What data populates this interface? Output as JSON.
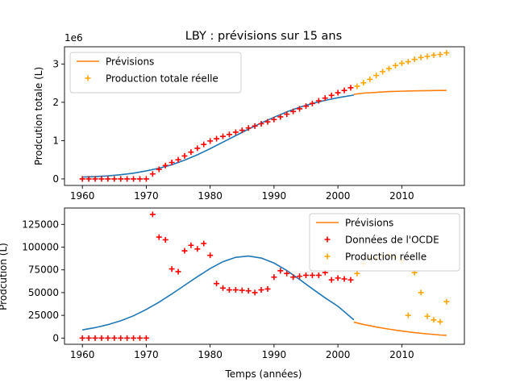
{
  "title": "LBY : prévisions sur 15 ans",
  "colors": {
    "fit": "#1f77b4",
    "forecast": "#ff7f0e",
    "oecd": "#ff0000",
    "real": "#ffa500"
  },
  "chart_data": [
    {
      "type": "line",
      "title": "LBY : prévisions sur 15 ans",
      "xlabel": "",
      "ylabel": "Prodcution totale (L)",
      "offset_text": "1e6",
      "xlim": [
        1957.2,
        2019.8
      ],
      "ylim": [
        -0.17,
        3.45
      ],
      "xticks": [
        1960,
        1970,
        1980,
        1990,
        2000,
        2010
      ],
      "yticks": [
        0,
        1,
        2,
        3
      ],
      "legend": {
        "placement": "upper-left",
        "entries": [
          "Prévisions",
          "Production totale réelle"
        ]
      },
      "series": [
        {
          "name": "",
          "color": "#1f77b4",
          "style": "line",
          "x": [
            1960,
            1962,
            1964,
            1966,
            1968,
            1970,
            1972,
            1974,
            1976,
            1978,
            1980,
            1982,
            1984,
            1986,
            1988,
            1990,
            1992,
            1994,
            1996,
            1998,
            2000,
            2002.5
          ],
          "y": [
            0.05,
            0.06,
            0.08,
            0.11,
            0.15,
            0.21,
            0.28,
            0.37,
            0.49,
            0.63,
            0.79,
            0.96,
            1.13,
            1.3,
            1.46,
            1.61,
            1.75,
            1.87,
            1.97,
            2.05,
            2.12,
            2.19
          ]
        },
        {
          "name": "Prévisions",
          "color": "#ff7f0e",
          "style": "line",
          "x": [
            2002.5,
            2004,
            2006,
            2008,
            2010,
            2012,
            2014,
            2016,
            2017
          ],
          "y": [
            2.21,
            2.24,
            2.26,
            2.28,
            2.29,
            2.3,
            2.305,
            2.31,
            2.31
          ]
        },
        {
          "name": "",
          "color": "#ff0000",
          "style": "marker",
          "x": [
            1960,
            1961,
            1962,
            1963,
            1964,
            1965,
            1966,
            1967,
            1968,
            1969,
            1970,
            1971,
            1972,
            1973,
            1974,
            1975,
            1976,
            1977,
            1978,
            1979,
            1980,
            1981,
            1982,
            1983,
            1984,
            1985,
            1986,
            1987,
            1988,
            1989,
            1990,
            1991,
            1992,
            1993,
            1994,
            1995,
            1996,
            1997,
            1998,
            1999,
            2000,
            2001,
            2002
          ],
          "y": [
            0,
            0,
            0,
            0,
            0,
            0,
            0,
            0,
            0,
            0,
            0,
            0.13,
            0.25,
            0.35,
            0.43,
            0.5,
            0.6,
            0.7,
            0.8,
            0.9,
            0.99,
            1.05,
            1.11,
            1.16,
            1.22,
            1.27,
            1.33,
            1.38,
            1.44,
            1.49,
            1.55,
            1.62,
            1.69,
            1.76,
            1.83,
            1.9,
            1.97,
            2.04,
            2.11,
            2.18,
            2.25,
            2.31,
            2.38
          ]
        },
        {
          "name": "Production totale réelle",
          "color": "#ffa500",
          "style": "marker",
          "x": [
            2003,
            2004,
            2005,
            2006,
            2007,
            2008,
            2009,
            2010,
            2011,
            2012,
            2013,
            2014,
            2015,
            2016,
            2017
          ],
          "y": [
            2.42,
            2.51,
            2.6,
            2.7,
            2.8,
            2.88,
            2.96,
            3.02,
            3.06,
            3.12,
            3.17,
            3.2,
            3.23,
            3.25,
            3.29
          ]
        }
      ]
    },
    {
      "type": "line",
      "title": "",
      "xlabel": "Temps (années)",
      "ylabel": "Prodcution (L)",
      "xlim": [
        1957.2,
        2019.8
      ],
      "ylim": [
        -6800,
        143000
      ],
      "xticks": [
        1960,
        1970,
        1980,
        1990,
        2000,
        2010
      ],
      "yticks": [
        0,
        25000,
        50000,
        75000,
        100000,
        125000
      ],
      "legend": {
        "placement": "upper-right",
        "entries": [
          "Prévisions",
          "Données de l'OCDE",
          "Production réelle"
        ]
      },
      "series": [
        {
          "name": "",
          "color": "#1f77b4",
          "style": "line",
          "x": [
            1960,
            1962,
            1964,
            1966,
            1968,
            1970,
            1972,
            1974,
            1976,
            1978,
            1980,
            1982,
            1984,
            1986,
            1988,
            1990,
            1992,
            1994,
            1996,
            1998,
            2000,
            2002.5
          ],
          "y": [
            9000,
            11500,
            14800,
            19000,
            24500,
            31500,
            39500,
            48500,
            58000,
            67500,
            76500,
            84000,
            88800,
            90200,
            88000,
            82500,
            74300,
            64500,
            54200,
            44200,
            35000,
            20000
          ]
        },
        {
          "name": "Prévisions",
          "color": "#ff7f0e",
          "style": "line",
          "x": [
            2002.5,
            2004,
            2006,
            2008,
            2010,
            2012,
            2014,
            2016,
            2017
          ],
          "y": [
            17500,
            15000,
            12200,
            9800,
            7800,
            6000,
            4600,
            3400,
            3000
          ]
        },
        {
          "name": "Données de l'OCDE",
          "color": "#ff0000",
          "style": "marker",
          "x": [
            1960,
            1961,
            1962,
            1963,
            1964,
            1965,
            1966,
            1967,
            1968,
            1969,
            1970,
            1971,
            1972,
            1973,
            1974,
            1975,
            1976,
            1977,
            1978,
            1979,
            1980,
            1981,
            1982,
            1983,
            1984,
            1985,
            1986,
            1987,
            1988,
            1989,
            1990,
            1991,
            1992,
            1993,
            1994,
            1995,
            1996,
            1997,
            1998,
            1999,
            2000,
            2001,
            2002
          ],
          "y": [
            0,
            0,
            0,
            0,
            0,
            0,
            0,
            0,
            0,
            0,
            0,
            136000,
            111000,
            108000,
            76000,
            73000,
            96000,
            102000,
            98000,
            104000,
            91000,
            60000,
            55000,
            53000,
            53000,
            52500,
            52000,
            50000,
            53000,
            54000,
            67000,
            74000,
            71000,
            67000,
            68000,
            69000,
            69000,
            69000,
            72000,
            64000,
            66000,
            65000,
            64000
          ]
        },
        {
          "name": "Production réelle",
          "color": "#ffa500",
          "style": "marker",
          "x": [
            2003,
            2004,
            2005,
            2006,
            2007,
            2008,
            2009,
            2010,
            2011,
            2012,
            2013,
            2014,
            2015,
            2016,
            2017
          ],
          "y": [
            71000,
            82000,
            88000,
            88000,
            90000,
            91000,
            89000,
            85000,
            25000,
            72000,
            50000,
            24000,
            20000,
            18000,
            40000
          ]
        }
      ]
    }
  ]
}
